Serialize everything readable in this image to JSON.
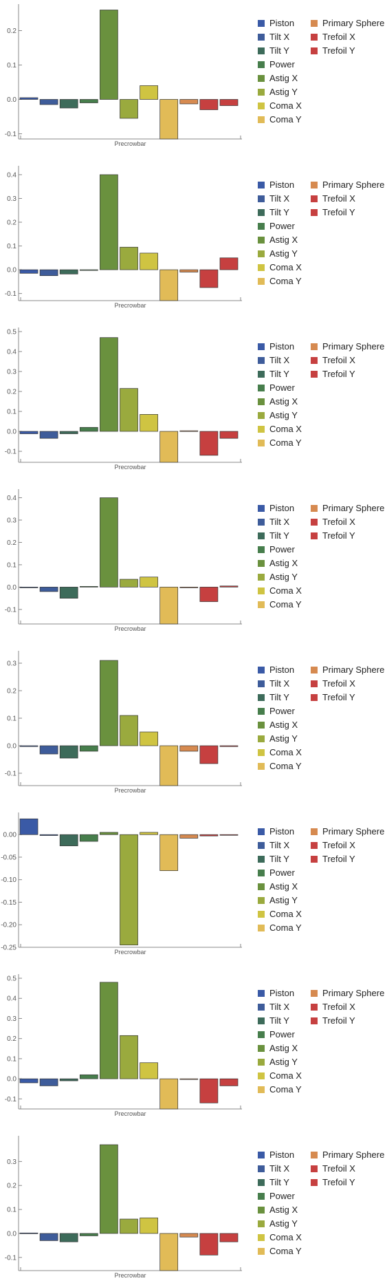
{
  "legend": {
    "items": [
      {
        "label": "Piston",
        "color": "#3a5aa6"
      },
      {
        "label": "Tilt X",
        "color": "#3e5c9a"
      },
      {
        "label": "Tilt Y",
        "color": "#3d6b5a"
      },
      {
        "label": "Power",
        "color": "#477e4c"
      },
      {
        "label": "Astig X",
        "color": "#6a913e"
      },
      {
        "label": "Astig Y",
        "color": "#9aaa3e"
      },
      {
        "label": "Coma X",
        "color": "#cfc442"
      },
      {
        "label": "Coma Y",
        "color": "#e1bb57"
      },
      {
        "label": "Primary Sphere",
        "color": "#d68a50"
      },
      {
        "label": "Trefoil X",
        "color": "#c64040"
      },
      {
        "label": "Trefoil Y",
        "color": "#c64040"
      }
    ]
  },
  "chart_data": [
    {
      "type": "bar",
      "xlabel": "Precrowbar",
      "categories": [
        "Piston",
        "Tilt X",
        "Tilt Y",
        "Power",
        "Astig X",
        "Astig Y",
        "Coma X",
        "Coma Y",
        "Primary Sphere",
        "Trefoil X",
        "Trefoil Y"
      ],
      "values": [
        0.005,
        -0.015,
        -0.025,
        -0.01,
        0.26,
        -0.055,
        0.04,
        -0.115,
        -0.013,
        -0.03,
        -0.018
      ],
      "ylim": [
        -0.115,
        0.265
      ],
      "ticks": [
        -0.1,
        0.0,
        0.1,
        0.2
      ],
      "tick_labels": [
        "-0.1",
        "0.0",
        "0.1",
        "0.2"
      ]
    },
    {
      "type": "bar",
      "xlabel": "Precrowbar",
      "categories": [
        "Piston",
        "Tilt X",
        "Tilt Y",
        "Power",
        "Astig X",
        "Astig Y",
        "Coma X",
        "Coma Y",
        "Primary Sphere",
        "Trefoil X",
        "Trefoil Y"
      ],
      "values": [
        -0.015,
        -0.025,
        -0.018,
        0.0,
        0.4,
        0.095,
        0.07,
        -0.13,
        -0.01,
        -0.075,
        0.05
      ],
      "ylim": [
        -0.13,
        0.42
      ],
      "ticks": [
        -0.1,
        0.0,
        0.1,
        0.2,
        0.3,
        0.4
      ],
      "tick_labels": [
        "-0.1",
        "0.0",
        "0.1",
        "0.2",
        "0.3",
        "0.4"
      ]
    },
    {
      "type": "bar",
      "xlabel": "Precrowbar",
      "categories": [
        "Piston",
        "Tilt X",
        "Tilt Y",
        "Power",
        "Astig X",
        "Astig Y",
        "Coma X",
        "Coma Y",
        "Primary Sphere",
        "Trefoil X",
        "Trefoil Y"
      ],
      "values": [
        -0.012,
        -0.035,
        -0.012,
        0.02,
        0.47,
        0.215,
        0.085,
        -0.155,
        0.003,
        -0.12,
        -0.035
      ],
      "ylim": [
        -0.155,
        0.5
      ],
      "ticks": [
        -0.1,
        0.0,
        0.1,
        0.2,
        0.3,
        0.4,
        0.5
      ],
      "tick_labels": [
        "-0.1",
        "0.0",
        "0.1",
        "0.2",
        "0.3",
        "0.4",
        "0.5"
      ]
    },
    {
      "type": "bar",
      "xlabel": "Precrowbar",
      "categories": [
        "Piston",
        "Tilt X",
        "Tilt Y",
        "Power",
        "Astig X",
        "Astig Y",
        "Coma X",
        "Coma Y",
        "Primary Sphere",
        "Trefoil X",
        "Trefoil Y"
      ],
      "values": [
        -0.002,
        -0.02,
        -0.05,
        0.003,
        0.4,
        0.035,
        0.045,
        -0.165,
        -0.003,
        -0.065,
        0.005
      ],
      "ylim": [
        -0.165,
        0.42
      ],
      "ticks": [
        -0.1,
        0.0,
        0.1,
        0.2,
        0.3,
        0.4
      ],
      "tick_labels": [
        "-0.1",
        "0.0",
        "0.1",
        "0.2",
        "0.3",
        "0.4"
      ]
    },
    {
      "type": "bar",
      "xlabel": "Precrowbar",
      "categories": [
        "Piston",
        "Tilt X",
        "Tilt Y",
        "Power",
        "Astig X",
        "Astig Y",
        "Coma X",
        "Coma Y",
        "Primary Sphere",
        "Trefoil X",
        "Trefoil Y"
      ],
      "values": [
        -0.003,
        -0.03,
        -0.045,
        -0.02,
        0.31,
        0.11,
        0.05,
        -0.145,
        -0.02,
        -0.065,
        -0.003
      ],
      "ylim": [
        -0.145,
        0.33
      ],
      "ticks": [
        -0.1,
        0.0,
        0.1,
        0.2,
        0.3
      ],
      "tick_labels": [
        "-0.1",
        "0.0",
        "0.1",
        "0.2",
        "0.3"
      ]
    },
    {
      "type": "bar",
      "xlabel": "Precrowbar",
      "categories": [
        "Piston",
        "Tilt X",
        "Tilt Y",
        "Power",
        "Astig X",
        "Astig Y",
        "Coma X",
        "Coma Y",
        "Primary Sphere",
        "Trefoil X",
        "Trefoil Y"
      ],
      "values": [
        0.035,
        -0.002,
        -0.025,
        -0.015,
        0.005,
        -0.245,
        0.005,
        -0.08,
        -0.008,
        -0.003,
        -0.001
      ],
      "ylim": [
        -0.25,
        0.04
      ],
      "ticks": [
        -0.25,
        -0.2,
        -0.15,
        -0.1,
        -0.05,
        0.0
      ],
      "tick_labels": [
        "-0.25",
        "-0.20",
        "-0.15",
        "-0.10",
        "-0.05",
        "0.00"
      ]
    },
    {
      "type": "bar",
      "xlabel": "Precrowbar",
      "categories": [
        "Piston",
        "Tilt X",
        "Tilt Y",
        "Power",
        "Astig X",
        "Astig Y",
        "Coma X",
        "Coma Y",
        "Primary Sphere",
        "Trefoil X",
        "Trefoil Y"
      ],
      "values": [
        -0.02,
        -0.035,
        -0.01,
        0.02,
        0.48,
        0.215,
        0.08,
        -0.15,
        0.0,
        -0.12,
        -0.035
      ],
      "ylim": [
        -0.15,
        0.5
      ],
      "ticks": [
        -0.1,
        0.0,
        0.1,
        0.2,
        0.3,
        0.4,
        0.5
      ],
      "tick_labels": [
        "-0.1",
        "0.0",
        "0.1",
        "0.2",
        "0.3",
        "0.4",
        "0.5"
      ]
    },
    {
      "type": "bar",
      "xlabel": "Precrowbar",
      "categories": [
        "Piston",
        "Tilt X",
        "Tilt Y",
        "Power",
        "Astig X",
        "Astig Y",
        "Coma X",
        "Coma Y",
        "Primary Sphere",
        "Trefoil X",
        "Trefoil Y"
      ],
      "values": [
        0.002,
        -0.03,
        -0.035,
        -0.01,
        0.37,
        0.06,
        0.065,
        -0.155,
        -0.015,
        -0.09,
        -0.035
      ],
      "ylim": [
        -0.155,
        0.39
      ],
      "ticks": [
        -0.1,
        0.0,
        0.1,
        0.2,
        0.3
      ],
      "tick_labels": [
        "-0.1",
        "0.0",
        "0.1",
        "0.2",
        "0.3"
      ]
    }
  ]
}
